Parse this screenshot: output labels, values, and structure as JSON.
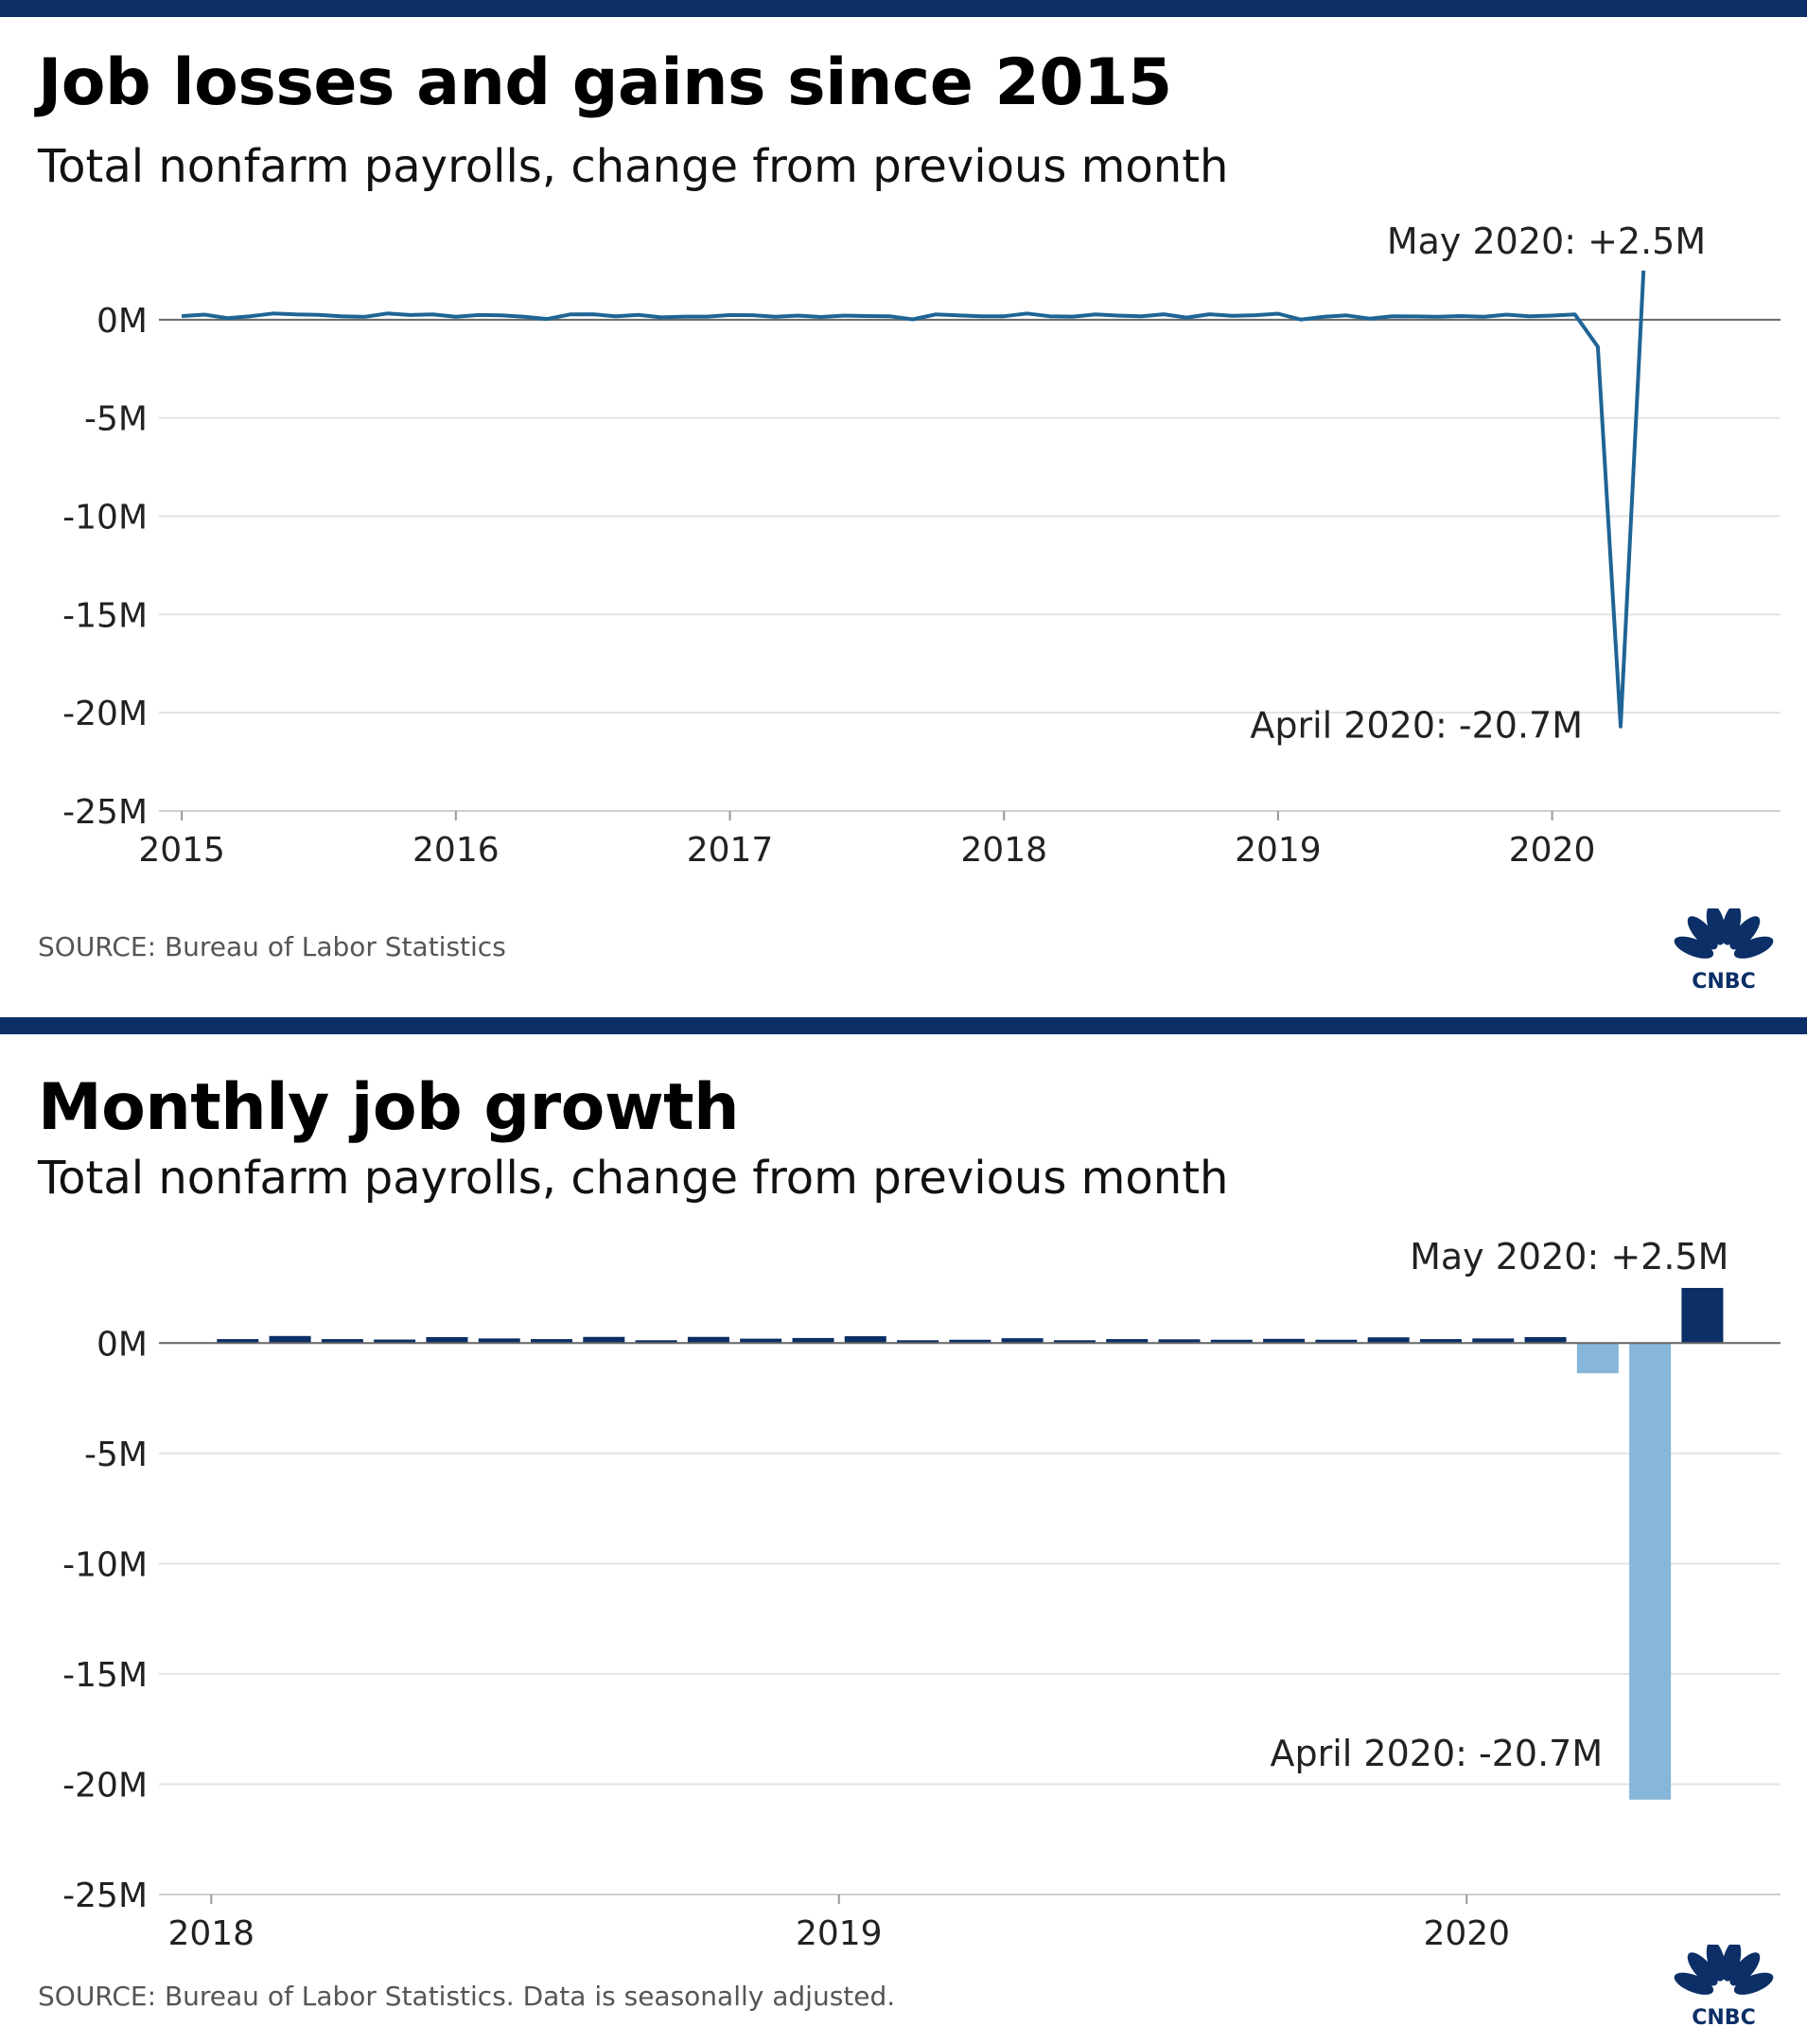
{
  "colors": {
    "bar_positive": "#0b2f66",
    "bar_negative": "#86b6d9",
    "line": "#1f6496",
    "band": "#0b2f66",
    "logo": "#0b2f66"
  },
  "brand": {
    "logo_icon": "peacock-icon",
    "logo_text": "CNBC"
  },
  "chart_data": [
    {
      "type": "line",
      "title": "Job losses and gains since 2015",
      "subtitle": "Total nonfarm payrolls, change from previous month",
      "ylabel": "",
      "xlabel": "",
      "ylim": [
        -25,
        2.5
      ],
      "yticks": [
        0,
        -5,
        -10,
        -15,
        -20,
        -25
      ],
      "ytick_labels": [
        "0M",
        "-5M",
        "-10M",
        "-15M",
        "-20M",
        "-25M"
      ],
      "xlim": [
        "2014-12",
        "2020-11"
      ],
      "xticks": [
        "2015-01",
        "2016-01",
        "2017-01",
        "2018-01",
        "2019-01",
        "2020-01"
      ],
      "xtick_labels": [
        "2015",
        "2016",
        "2017",
        "2018",
        "2019",
        "2020"
      ],
      "grid": true,
      "series": [
        {
          "x": [
            "2015-01",
            "2015-02",
            "2015-03",
            "2015-04",
            "2015-05",
            "2015-06",
            "2015-07",
            "2015-08",
            "2015-09",
            "2015-10",
            "2015-11",
            "2015-12",
            "2016-01",
            "2016-02",
            "2016-03",
            "2016-04",
            "2016-05",
            "2016-06",
            "2016-07",
            "2016-08",
            "2016-09",
            "2016-10",
            "2016-11",
            "2016-12",
            "2017-01",
            "2017-02",
            "2017-03",
            "2017-04",
            "2017-05",
            "2017-06",
            "2017-07",
            "2017-08",
            "2017-09",
            "2017-10",
            "2017-11",
            "2017-12",
            "2018-01",
            "2018-02",
            "2018-03",
            "2018-04",
            "2018-05",
            "2018-06",
            "2018-07",
            "2018-08",
            "2018-09",
            "2018-10",
            "2018-11",
            "2018-12",
            "2019-01",
            "2019-02",
            "2019-03",
            "2019-04",
            "2019-05",
            "2019-06",
            "2019-07",
            "2019-08",
            "2019-09",
            "2019-10",
            "2019-11",
            "2019-12",
            "2020-01",
            "2020-02",
            "2020-03",
            "2020-04",
            "2020-05"
          ],
          "values": [
            0.19,
            0.26,
            0.08,
            0.18,
            0.32,
            0.27,
            0.25,
            0.18,
            0.15,
            0.32,
            0.24,
            0.27,
            0.15,
            0.24,
            0.22,
            0.15,
            0.04,
            0.27,
            0.28,
            0.18,
            0.25,
            0.12,
            0.16,
            0.16,
            0.24,
            0.23,
            0.15,
            0.21,
            0.14,
            0.21,
            0.19,
            0.18,
            0.02,
            0.27,
            0.22,
            0.18,
            0.18,
            0.32,
            0.18,
            0.16,
            0.27,
            0.21,
            0.18,
            0.28,
            0.11,
            0.28,
            0.2,
            0.23,
            0.31,
            0.01,
            0.15,
            0.22,
            0.06,
            0.18,
            0.17,
            0.15,
            0.19,
            0.15,
            0.26,
            0.18,
            0.21,
            0.27,
            -1.37,
            -20.7,
            2.5
          ]
        }
      ],
      "annotations": [
        {
          "text": "May 2020: +2.5M",
          "x": "2020-05",
          "y": 2.5
        },
        {
          "text": "April 2020: -20.7M",
          "x": "2020-04",
          "y": -20.7
        }
      ],
      "source": "SOURCE: Bureau of Labor Statistics"
    },
    {
      "type": "bar",
      "title": "Monthly job growth",
      "subtitle": "Total nonfarm payrolls, change from previous month",
      "ylabel": "",
      "xlabel": "",
      "ylim": [
        -25,
        2.5
      ],
      "yticks": [
        0,
        -5,
        -10,
        -15,
        -20,
        -25
      ],
      "ytick_labels": [
        "0M",
        "-5M",
        "-10M",
        "-15M",
        "-20M",
        "-25M"
      ],
      "xlim": [
        "2017-12",
        "2020-07"
      ],
      "xticks": [
        "2018-01",
        "2019-01",
        "2020-01"
      ],
      "xtick_labels": [
        "2018",
        "2019",
        "2020"
      ],
      "grid": true,
      "categories": [
        "2018-01",
        "2018-02",
        "2018-03",
        "2018-04",
        "2018-05",
        "2018-06",
        "2018-07",
        "2018-08",
        "2018-09",
        "2018-10",
        "2018-11",
        "2018-12",
        "2019-01",
        "2019-02",
        "2019-03",
        "2019-04",
        "2019-05",
        "2019-06",
        "2019-07",
        "2019-08",
        "2019-09",
        "2019-10",
        "2019-11",
        "2019-12",
        "2020-01",
        "2020-02",
        "2020-03",
        "2020-04",
        "2020-05"
      ],
      "values": [
        0.18,
        0.32,
        0.18,
        0.16,
        0.27,
        0.21,
        0.18,
        0.28,
        0.11,
        0.28,
        0.2,
        0.23,
        0.31,
        0.01,
        0.15,
        0.22,
        0.06,
        0.18,
        0.17,
        0.15,
        0.19,
        0.15,
        0.26,
        0.18,
        0.21,
        0.27,
        -1.37,
        -20.7,
        2.5
      ],
      "annotations": [
        {
          "text": "May 2020: +2.5M",
          "x": "2020-05",
          "y": 2.5
        },
        {
          "text": "April 2020: -20.7M",
          "x": "2020-04",
          "y": -20.7
        }
      ],
      "source": "SOURCE: Bureau of Labor Statistics. Data is seasonally adjusted."
    }
  ]
}
